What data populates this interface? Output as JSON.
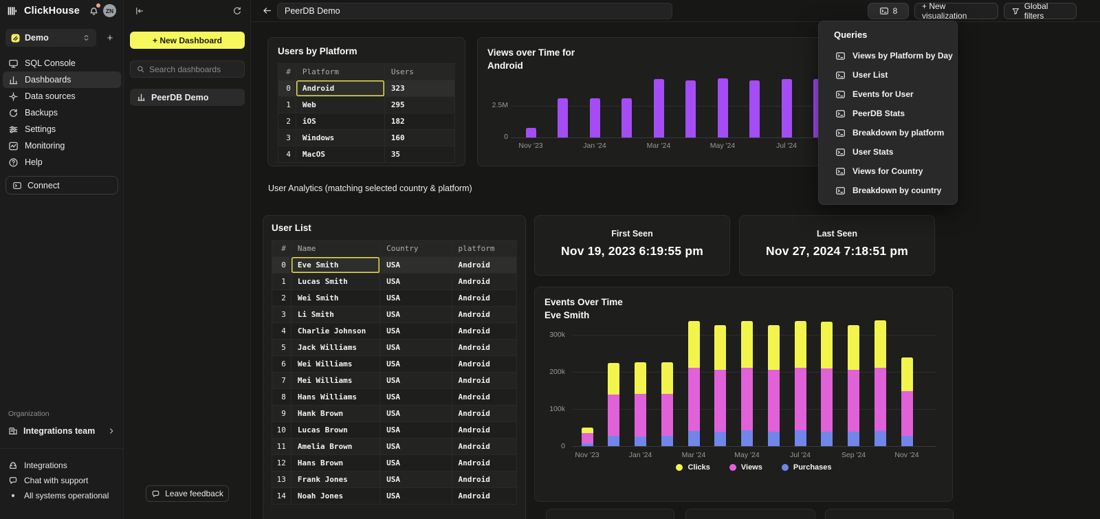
{
  "app": {
    "brand": "ClickHouse",
    "avatar_initials": "ZN"
  },
  "sidebar": {
    "workspace": "Demo",
    "items": [
      {
        "label": "SQL Console",
        "icon": "sql-console-icon",
        "active": false
      },
      {
        "label": "Dashboards",
        "icon": "dashboards-icon",
        "active": true
      },
      {
        "label": "Data sources",
        "icon": "data-sources-icon",
        "active": false
      },
      {
        "label": "Backups",
        "icon": "backups-icon",
        "active": false
      },
      {
        "label": "Settings",
        "icon": "settings-icon",
        "active": false
      },
      {
        "label": "Monitoring",
        "icon": "monitoring-icon",
        "active": false
      },
      {
        "label": "Help",
        "icon": "help-icon",
        "active": false
      }
    ],
    "connect": "Connect",
    "organization_label": "Organization",
    "team": "Integrations team",
    "footer_items": [
      {
        "label": "Integrations",
        "icon": "integrations-icon"
      },
      {
        "label": "Chat with support",
        "icon": "chat-icon"
      },
      {
        "label": "All systems operational",
        "icon": "status-dot-icon"
      }
    ]
  },
  "dashboards_panel": {
    "new_dashboard": "+ New Dashboard",
    "search_placeholder": "Search dashboards",
    "dashboard_name": "PeerDB Demo",
    "leave_feedback": "Leave feedback"
  },
  "header": {
    "title": "PeerDB Demo",
    "queries_count": "8",
    "new_visualization": "+ New visualization",
    "global_filters": "Global filters"
  },
  "queries": {
    "title": "Queries",
    "items": [
      "Views by Platform by Day",
      "User List",
      "Events for User",
      "PeerDB Stats",
      "Breakdown by platform",
      "User Stats",
      "Views for Country",
      "Breakdown by country"
    ]
  },
  "panels": {
    "users_by_platform": {
      "title": "Users by Platform",
      "columns": [
        "#",
        "Platform",
        "Users"
      ],
      "rows": [
        [
          "0",
          "Android",
          "323"
        ],
        [
          "1",
          "Web",
          "295"
        ],
        [
          "2",
          "iOS",
          "182"
        ],
        [
          "3",
          "Windows",
          "160"
        ],
        [
          "4",
          "MacOS",
          "35"
        ]
      ],
      "selected_row": 0,
      "selected_col": 1
    },
    "note": "User Analytics (matching selected country & platform)",
    "user_list": {
      "title": "User List",
      "columns": [
        "#",
        "Name",
        "Country",
        "platform"
      ],
      "rows": [
        [
          "0",
          "Eve Smith",
          "USA",
          "Android"
        ],
        [
          "1",
          "Lucas Smith",
          "USA",
          "Android"
        ],
        [
          "2",
          "Wei Smith",
          "USA",
          "Android"
        ],
        [
          "3",
          "Li Smith",
          "USA",
          "Android"
        ],
        [
          "4",
          "Charlie Johnson",
          "USA",
          "Android"
        ],
        [
          "5",
          "Jack Williams",
          "USA",
          "Android"
        ],
        [
          "6",
          "Wei Williams",
          "USA",
          "Android"
        ],
        [
          "7",
          "Mei Williams",
          "USA",
          "Android"
        ],
        [
          "8",
          "Hans Williams",
          "USA",
          "Android"
        ],
        [
          "9",
          "Hank Brown",
          "USA",
          "Android"
        ],
        [
          "10",
          "Lucas Brown",
          "USA",
          "Android"
        ],
        [
          "11",
          "Amelia Brown",
          "USA",
          "Android"
        ],
        [
          "12",
          "Hans Brown",
          "USA",
          "Android"
        ],
        [
          "13",
          "Frank Jones",
          "USA",
          "Android"
        ],
        [
          "14",
          "Noah Jones",
          "USA",
          "Android"
        ]
      ],
      "selected_row": 0,
      "selected_col": 1
    },
    "first_seen": {
      "label": "First Seen",
      "value": "Nov 19, 2023 6:19:55 pm"
    },
    "last_seen": {
      "label": "Last Seen",
      "value": "Nov 27, 2024 7:18:51 pm"
    }
  },
  "chart_data": [
    {
      "type": "bar",
      "title": "Views over Time for Android",
      "title_lines": [
        "Views over Time for",
        "Android"
      ],
      "x": [
        "Nov '23",
        "Dec '23",
        "Jan '24",
        "Feb '24",
        "Mar '24",
        "Apr '24",
        "May '24",
        "Jun '24",
        "Jul '24",
        "Aug '24"
      ],
      "values_millions": [
        0.75,
        3.1,
        3.1,
        3.1,
        4.6,
        4.5,
        4.65,
        4.5,
        4.6,
        4.6
      ],
      "x_tick_labels": [
        "Nov '23",
        "Jan '24",
        "Mar '24",
        "May '24",
        "Jul '24"
      ],
      "yticks": [
        "0",
        "2.5M"
      ],
      "ylim_millions": [
        0,
        5
      ],
      "bar_color": "#a44df5",
      "grid": true,
      "legend_position": "none"
    },
    {
      "type": "stacked-bar",
      "title": "Events Over Time",
      "subtitle": "Eve Smith",
      "x": [
        "Nov '23",
        "Dec '23",
        "Jan '24",
        "Feb '24",
        "Mar '24",
        "Apr '24",
        "May '24",
        "Jun '24",
        "Jul '24",
        "Aug '24",
        "Sep '24",
        "Oct '24",
        "Nov '24"
      ],
      "series": [
        {
          "name": "Purchases",
          "color": "#7186e9",
          "values_k": [
            8,
            28,
            26,
            27,
            40,
            38,
            42,
            38,
            42,
            38,
            38,
            40,
            28
          ]
        },
        {
          "name": "Views",
          "color": "#e161d9",
          "values_k": [
            27,
            112,
            114,
            113,
            170,
            166,
            168,
            166,
            168,
            170,
            166,
            170,
            121
          ]
        },
        {
          "name": "Clicks",
          "color": "#f2f44c",
          "values_k": [
            15,
            85,
            85,
            85,
            125,
            120,
            126,
            120,
            126,
            126,
            120,
            127,
            90
          ]
        }
      ],
      "legend": [
        "Clicks",
        "Views",
        "Purchases"
      ],
      "x_tick_labels": [
        "Nov '23",
        "Jan '24",
        "Mar '24",
        "May '24",
        "Jul '24",
        "Sep '24",
        "Nov '24"
      ],
      "yticks": [
        "0",
        "100k",
        "200k",
        "300k"
      ],
      "ylim_k": [
        0,
        350
      ],
      "grid": true,
      "legend_position": "bottom"
    }
  ],
  "colors": {
    "accent_yellow": "#f6f75d",
    "selection_yellow": "#eae44e",
    "bar_purple": "#a44df5",
    "clicks_yellow": "#f2f44c",
    "views_pink": "#e161d9",
    "purchases_blue": "#7186e9"
  }
}
